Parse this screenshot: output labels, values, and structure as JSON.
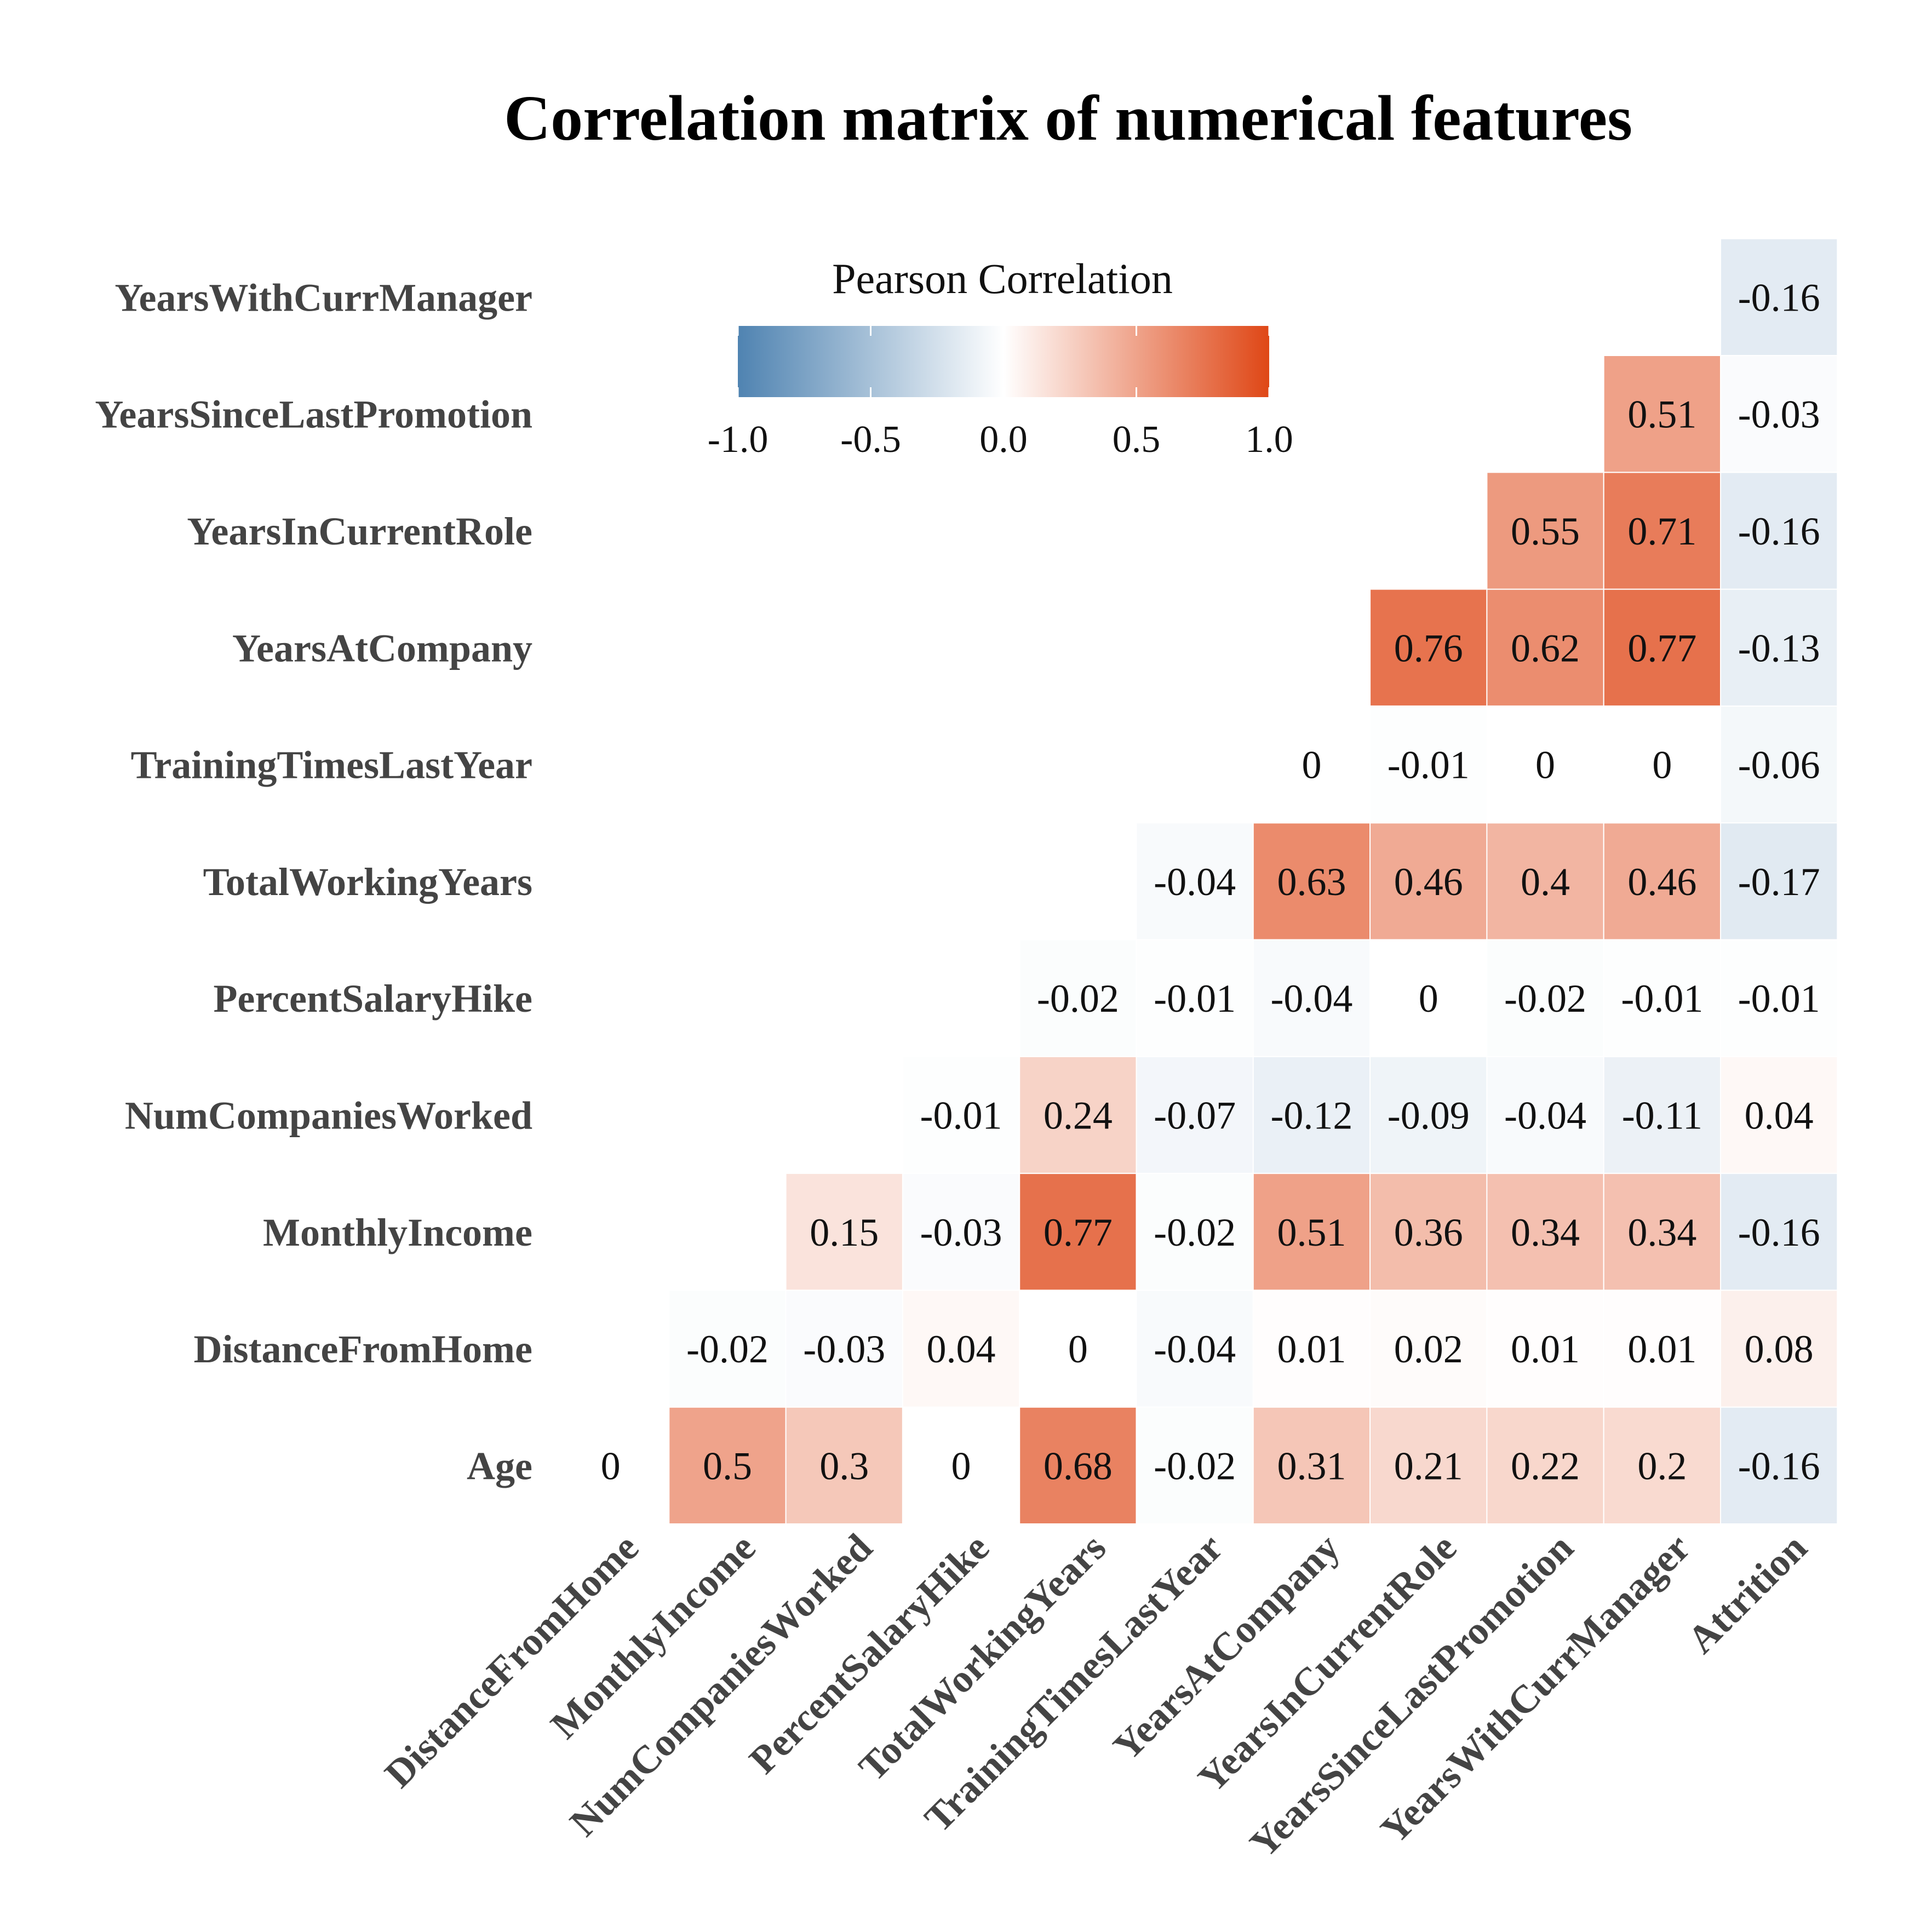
{
  "chart_data": {
    "type": "heatmap",
    "title": "Correlation matrix of numerical features",
    "x_labels": [
      "DistanceFromHome",
      "MonthlyIncome",
      "NumCompaniesWorked",
      "PercentSalaryHike",
      "TotalWorkingYears",
      "TrainingTimesLastYear",
      "YearsAtCompany",
      "YearsInCurrentRole",
      "YearsSinceLastPromotion",
      "YearsWithCurrManager",
      "Attrition"
    ],
    "y_labels": [
      "Age",
      "DistanceFromHome",
      "MonthlyIncome",
      "NumCompaniesWorked",
      "PercentSalaryHike",
      "TotalWorkingYears",
      "TrainingTimesLastYear",
      "YearsAtCompany",
      "YearsInCurrentRole",
      "YearsSinceLastPromotion",
      "YearsWithCurrManager"
    ],
    "values": [
      [
        0,
        0.5,
        0.3,
        0,
        0.68,
        -0.02,
        0.31,
        0.21,
        0.22,
        0.2,
        -0.16
      ],
      [
        null,
        -0.02,
        -0.03,
        0.04,
        0,
        -0.04,
        0.01,
        0.02,
        0.01,
        0.01,
        0.08
      ],
      [
        null,
        null,
        0.15,
        -0.03,
        0.77,
        -0.02,
        0.51,
        0.36,
        0.34,
        0.34,
        -0.16
      ],
      [
        null,
        null,
        null,
        -0.01,
        0.24,
        -0.07,
        -0.12,
        -0.09,
        -0.04,
        -0.11,
        0.04
      ],
      [
        null,
        null,
        null,
        null,
        -0.02,
        -0.01,
        -0.04,
        0,
        -0.02,
        -0.01,
        -0.01
      ],
      [
        null,
        null,
        null,
        null,
        null,
        -0.04,
        0.63,
        0.46,
        0.4,
        0.46,
        -0.17
      ],
      [
        null,
        null,
        null,
        null,
        null,
        null,
        0,
        -0.01,
        0,
        0,
        -0.06
      ],
      [
        null,
        null,
        null,
        null,
        null,
        null,
        null,
        0.76,
        0.62,
        0.77,
        -0.13
      ],
      [
        null,
        null,
        null,
        null,
        null,
        null,
        null,
        null,
        0.55,
        0.71,
        -0.16
      ],
      [
        null,
        null,
        null,
        null,
        null,
        null,
        null,
        null,
        null,
        0.51,
        -0.03
      ],
      [
        null,
        null,
        null,
        null,
        null,
        null,
        null,
        null,
        null,
        null,
        -0.16
      ]
    ],
    "color_scale": {
      "min": -1.0,
      "max": 1.0,
      "low_color": "#4f83b1",
      "mid_color": "#ffffff",
      "high_color": "#df4716"
    },
    "legend": {
      "title": "Pearson Correlation",
      "ticks": [
        -1.0,
        -0.5,
        0.0,
        0.5,
        1.0
      ],
      "tick_labels": [
        "-1.0",
        "-0.5",
        "0.0",
        "0.5",
        "1.0"
      ],
      "placement": "top-left inside plot"
    }
  }
}
